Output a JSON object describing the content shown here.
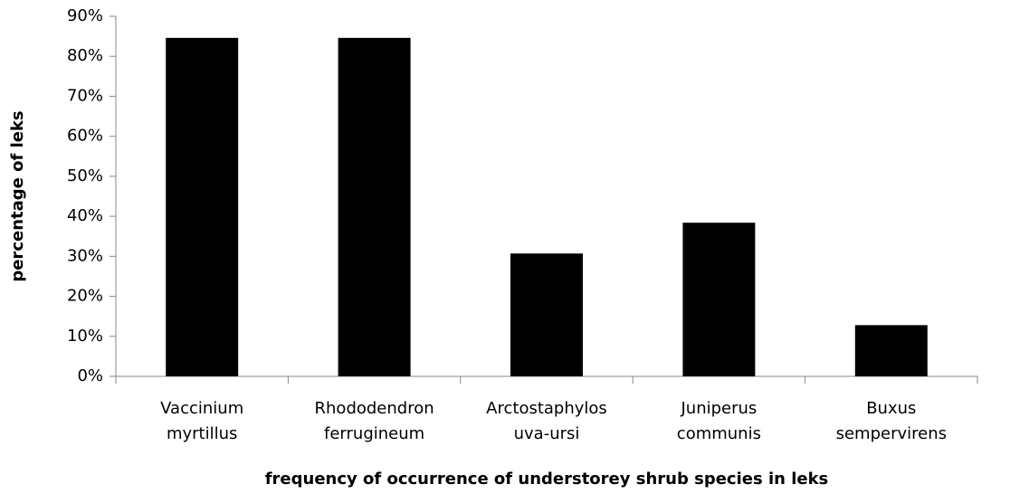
{
  "chart_data": {
    "type": "bar",
    "x_label": "frequency of occurrence of understorey shrub species in leks",
    "y_label": "percentage of leks",
    "categories": [
      "Vaccinium myrtillus",
      "Rhododendron ferrugineum",
      "Arctostaphylos uva-ursi",
      "Juniperus communis",
      "Buxus sempervirens"
    ],
    "values": [
      84.6,
      84.6,
      30.7,
      38.4,
      12.8
    ],
    "color": "#000000",
    "ylim": [
      0,
      90
    ],
    "yticks": [
      {
        "value": 0,
        "label": "0%"
      },
      {
        "value": 10,
        "label": "10%"
      },
      {
        "value": 20,
        "label": "20%"
      },
      {
        "value": 30,
        "label": "30%"
      },
      {
        "value": 40,
        "label": "40%"
      },
      {
        "value": 50,
        "label": "50%"
      },
      {
        "value": 60,
        "label": "60%"
      },
      {
        "value": 70,
        "label": "70%"
      },
      {
        "value": 80,
        "label": "80%"
      },
      {
        "value": 90,
        "label": "90%"
      }
    ],
    "grid": false
  }
}
